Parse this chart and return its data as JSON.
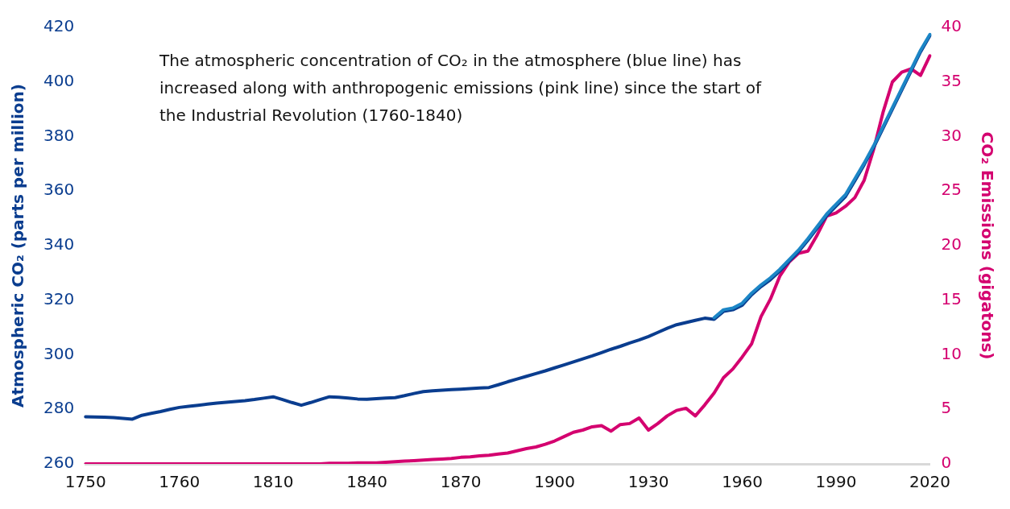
{
  "chart_data": {
    "type": "line",
    "marker": "none",
    "categories": [
      "1750",
      null,
      null,
      null,
      null,
      null,
      null,
      null,
      null,
      null,
      "1760",
      null,
      null,
      null,
      null,
      null,
      null,
      null,
      null,
      null,
      "1810",
      null,
      null,
      null,
      null,
      null,
      null,
      null,
      null,
      null,
      "1840",
      null,
      null,
      null,
      null,
      null,
      null,
      null,
      null,
      null,
      "1870",
      null,
      null,
      null,
      null,
      null,
      null,
      null,
      null,
      null,
      "1900",
      null,
      null,
      null,
      null,
      null,
      null,
      null,
      null,
      null,
      "1930",
      null,
      null,
      null,
      null,
      null,
      null,
      null,
      null,
      null,
      "1960",
      null,
      null,
      null,
      null,
      null,
      null,
      null,
      null,
      null,
      "1990",
      null,
      null,
      null,
      null,
      null,
      null,
      null,
      null,
      null,
      "2020"
    ],
    "series": [
      {
        "color": "#1c86c6",
        "axis": "y",
        "values": [
          null,
          null,
          null,
          null,
          null,
          null,
          null,
          null,
          null,
          null,
          null,
          null,
          null,
          null,
          null,
          null,
          null,
          null,
          null,
          null,
          null,
          null,
          null,
          null,
          null,
          null,
          null,
          null,
          null,
          null,
          null,
          null,
          null,
          null,
          null,
          null,
          null,
          null,
          null,
          null,
          null,
          null,
          null,
          null,
          null,
          null,
          null,
          null,
          null,
          null,
          null,
          null,
          null,
          null,
          null,
          null,
          null,
          null,
          null,
          null,
          null,
          null,
          null,
          null,
          null,
          null,
          null,
          313.6,
          316.5,
          317.1,
          318.9,
          322.6,
          325.6,
          328.2,
          331.3,
          334.9,
          338.4,
          342.6,
          347.1,
          351.6,
          355.2,
          358.7,
          364.5,
          370.3,
          376.6,
          383.6,
          390.6,
          397.6,
          404.6,
          411.6,
          417.4
        ]
      },
      {
        "color": "#0a3d8f",
        "axis": "y",
        "values": [
          277.3,
          277.2,
          277.1,
          277.0,
          276.7,
          276.4,
          277.8,
          278.5,
          279.2,
          280.0,
          280.7,
          281.1,
          281.5,
          281.9,
          282.3,
          282.6,
          282.9,
          283.2,
          283.6,
          284.1,
          284.6,
          283.6,
          282.5,
          281.5,
          282.5,
          283.6,
          284.6,
          284.4,
          284.1,
          283.8,
          283.7,
          283.9,
          284.1,
          284.3,
          285.0,
          285.8,
          286.5,
          286.8,
          287.0,
          287.2,
          287.4,
          287.6,
          287.8,
          288.0,
          289.0,
          290.1,
          291.1,
          292.1,
          293.1,
          294.1,
          295.2,
          296.3,
          297.4,
          298.5,
          299.6,
          300.8,
          302.0,
          303.1,
          304.3,
          305.4,
          306.7,
          308.2,
          309.7,
          311.0,
          311.8,
          312.6,
          313.4,
          313.0,
          315.9,
          316.5,
          318.2,
          322.0,
          325.0,
          327.5,
          330.7,
          334.3,
          337.8,
          342.0,
          346.5,
          351.0,
          354.5,
          358.0,
          363.8,
          369.7,
          376.0,
          383.0,
          390.0,
          397.0,
          404.0,
          411.0,
          417.0
        ]
      },
      {
        "color": "#d4006f",
        "axis": "y2",
        "values": [
          0,
          0,
          0,
          0,
          0,
          0,
          0,
          0,
          0,
          0,
          0,
          0,
          0,
          0,
          0,
          0,
          0,
          0,
          0,
          0,
          0,
          0,
          0,
          0,
          0,
          0,
          0.05,
          0.05,
          0.05,
          0.1,
          0.1,
          0.1,
          0.15,
          0.2,
          0.25,
          0.3,
          0.35,
          0.4,
          0.45,
          0.5,
          0.6,
          0.65,
          0.73,
          0.8,
          0.9,
          1.0,
          1.2,
          1.4,
          1.55,
          1.8,
          2.1,
          2.5,
          2.9,
          3.1,
          3.4,
          3.5,
          3.0,
          3.6,
          3.7,
          4.2,
          3.1,
          3.7,
          4.4,
          4.9,
          5.1,
          4.4,
          5.4,
          6.5,
          7.9,
          8.7,
          9.8,
          11.0,
          13.5,
          15.1,
          17.2,
          18.5,
          19.3,
          19.5,
          21.0,
          22.7,
          23.0,
          23.6,
          24.4,
          26.0,
          28.8,
          32.2,
          35.0,
          35.9,
          36.2,
          35.6,
          37.4
        ]
      }
    ],
    "ylabel": "Atmospheric CO₂ (parts per million)",
    "y2label": "CO₂ Emissions (gigatons)",
    "ylim": [
      260,
      420
    ],
    "yticks": [
      260,
      280,
      300,
      320,
      340,
      360,
      380,
      400,
      420
    ],
    "y2lim": [
      0,
      40
    ],
    "y2ticks": [
      0,
      5,
      10,
      15,
      20,
      25,
      30,
      35,
      40
    ],
    "annotations": [
      "The atmospheric concentration of CO₂ in the atmosphere (blue line) has increased along with anthropogenic emissions (pink line) since the start of the Industrial Revolution (1760-1840)"
    ]
  }
}
